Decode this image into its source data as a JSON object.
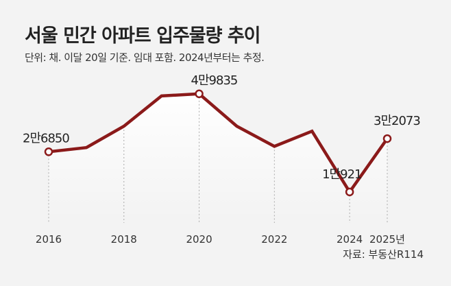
{
  "title": "서울 민간 아파트 입주물량 추이",
  "subtitle": "단위: 채. 이달 20일 기준. 임대 포함. 2024년부터는 추정.",
  "source": "자료: 부동산R114",
  "colors": {
    "line": "#8b1a1a",
    "marker_fill": "#ffffff",
    "background": "#f3f3f3"
  },
  "chart_data": {
    "type": "line",
    "x": [
      2016,
      2017,
      2018,
      2019,
      2020,
      2021,
      2022,
      2023,
      2024,
      2025
    ],
    "values": [
      26850,
      28500,
      37000,
      49000,
      49835,
      37000,
      29000,
      35000,
      10921,
      32073
    ],
    "tick_labels": [
      "2016",
      "2018",
      "2020",
      "2022",
      "2024",
      "2025년"
    ],
    "tick_x": [
      2016,
      2018,
      2020,
      2022,
      2024,
      2025
    ],
    "highlighted": [
      {
        "x": 2016,
        "label": "2만6850"
      },
      {
        "x": 2020,
        "label": "4만9835"
      },
      {
        "x": 2024,
        "label": "1만921"
      },
      {
        "x": 2025,
        "label": "3만2073"
      }
    ],
    "ylim": [
      0,
      60000
    ],
    "grid": false,
    "area_fill": true
  }
}
